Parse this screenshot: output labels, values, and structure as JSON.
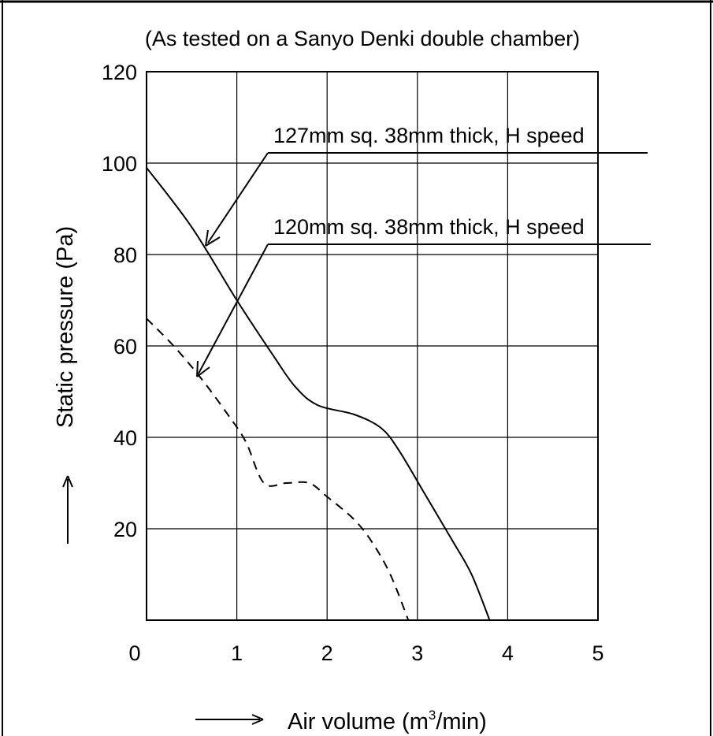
{
  "chart_data": {
    "type": "line",
    "subtitle": "(As tested on a Sanyo Denki double chamber)",
    "xlabel": "Air volume (m",
    "xlabel_sup": "3",
    "xlabel_tail": "/min)",
    "ylabel": "Static pressure (Pa)",
    "xlim": [
      0,
      5
    ],
    "ylim": [
      0,
      120
    ],
    "x_ticks": [
      "0",
      "1",
      "2",
      "3",
      "4",
      "5"
    ],
    "y_ticks": [
      "20",
      "40",
      "60",
      "80",
      "100",
      "120"
    ],
    "grid": true,
    "series": [
      {
        "name": "127mm sq. 38mm thick, H speed",
        "style": "solid",
        "x": [
          0,
          0.5,
          1.0,
          1.4,
          1.65,
          1.9,
          2.3,
          2.6,
          2.8,
          3.1,
          3.4,
          3.6,
          3.8
        ],
        "y": [
          99,
          86,
          70,
          58,
          51,
          47,
          45,
          42,
          37,
          27,
          17,
          10,
          0
        ]
      },
      {
        "name": "120mm sq. 38mm thick, H speed",
        "style": "dashed",
        "x": [
          0,
          0.3,
          0.6,
          0.9,
          1.1,
          1.3,
          1.55,
          1.8,
          2.0,
          2.3,
          2.5,
          2.7,
          2.9
        ],
        "y": [
          66,
          60,
          53,
          45,
          39,
          30,
          30,
          30,
          27,
          22,
          17,
          10,
          0
        ]
      }
    ]
  }
}
